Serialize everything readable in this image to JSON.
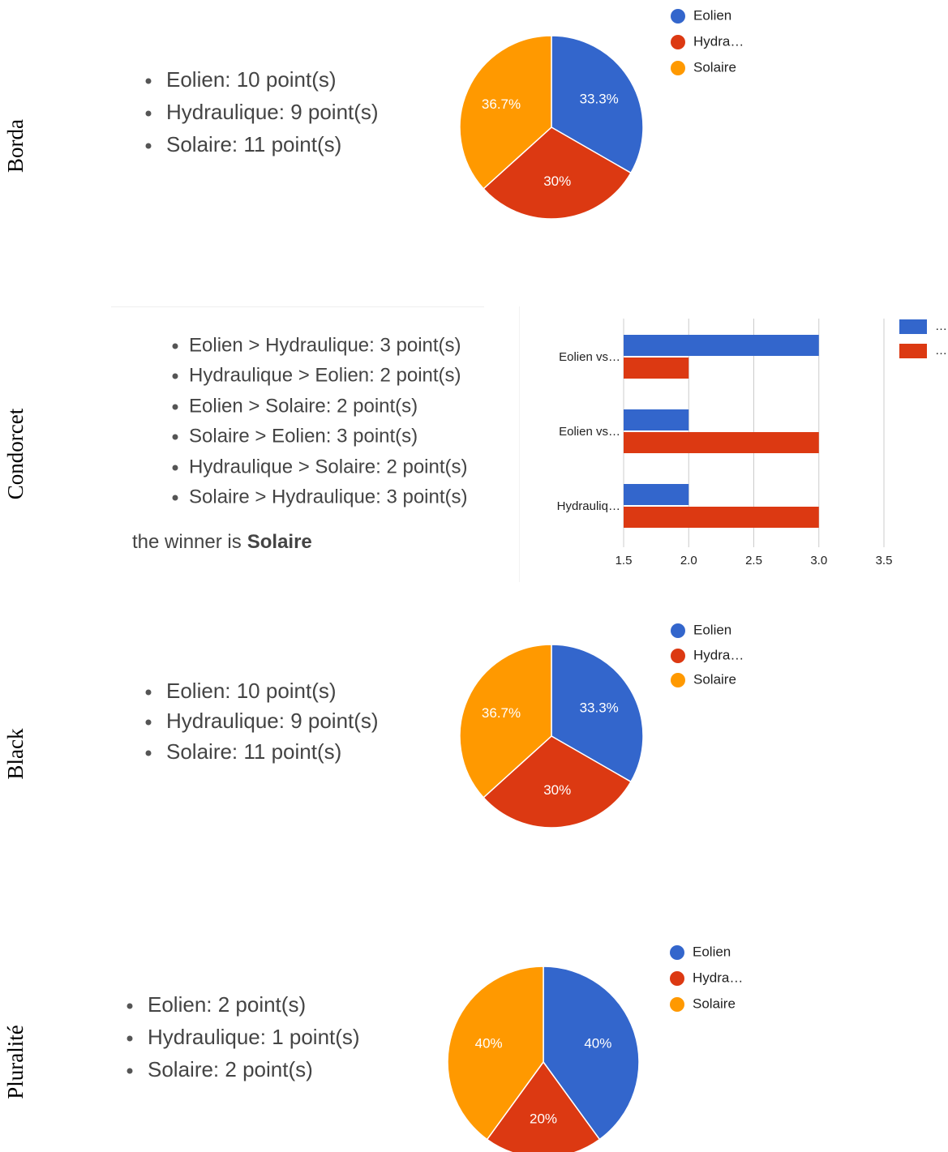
{
  "sections": [
    {
      "label": "Borda",
      "items": [
        "Eolien: 10 point(s)",
        "Hydraulique: 9 point(s)",
        "Solaire: 11 point(s)"
      ]
    },
    {
      "label": "Condorcet",
      "items": [
        "Eolien > Hydraulique: 3 point(s)",
        "Hydraulique > Eolien: 2 point(s)",
        "Eolien > Solaire: 2 point(s)",
        "Solaire > Eolien: 3 point(s)",
        "Hydraulique > Solaire: 2 point(s)",
        "Solaire > Hydraulique: 3 point(s)"
      ],
      "winner_prefix": "the winner is",
      "winner": "Solaire"
    },
    {
      "label": "Black",
      "items": [
        "Eolien: 10 point(s)",
        "Hydraulique: 9 point(s)",
        "Solaire: 11 point(s)"
      ]
    },
    {
      "label": "Pluralité",
      "items": [
        "Eolien: 2 point(s)",
        "Hydraulique: 1 point(s)",
        "Solaire: 2 point(s)"
      ]
    }
  ],
  "chart_data": [
    {
      "type": "pie",
      "categories": [
        "Eolien",
        "Hydra…",
        "Solaire"
      ],
      "values": [
        33.3,
        30,
        36.7
      ],
      "value_labels": [
        "33.3%",
        "30%",
        "36.7%"
      ],
      "colors": [
        "#3366cc",
        "#dc3912",
        "#ff9900"
      ]
    },
    {
      "type": "bar",
      "orientation": "horizontal",
      "categories": [
        "Eolien vs…",
        "Eolien vs…",
        "Hydrauliq…"
      ],
      "series": [
        {
          "name": "…",
          "color": "#3366cc",
          "values": [
            3,
            2,
            2
          ]
        },
        {
          "name": "…",
          "color": "#dc3912",
          "values": [
            2,
            3,
            3
          ]
        }
      ],
      "xlim": [
        1.5,
        3.5
      ],
      "xticks": [
        1.5,
        {
          "value": 2,
          "label": "2.0"
        },
        2.5,
        {
          "value": 3,
          "label": "3.0"
        },
        3.5
      ],
      "grid": true
    },
    {
      "type": "pie",
      "categories": [
        "Eolien",
        "Hydra…",
        "Solaire"
      ],
      "values": [
        33.3,
        30,
        36.7
      ],
      "value_labels": [
        "33.3%",
        "30%",
        "36.7%"
      ],
      "colors": [
        "#3366cc",
        "#dc3912",
        "#ff9900"
      ]
    },
    {
      "type": "pie",
      "categories": [
        "Eolien",
        "Hydra…",
        "Solaire"
      ],
      "values": [
        40,
        20,
        40
      ],
      "value_labels": [
        "40%",
        "20%",
        "40%"
      ],
      "colors": [
        "#3366cc",
        "#dc3912",
        "#ff9900"
      ]
    }
  ]
}
